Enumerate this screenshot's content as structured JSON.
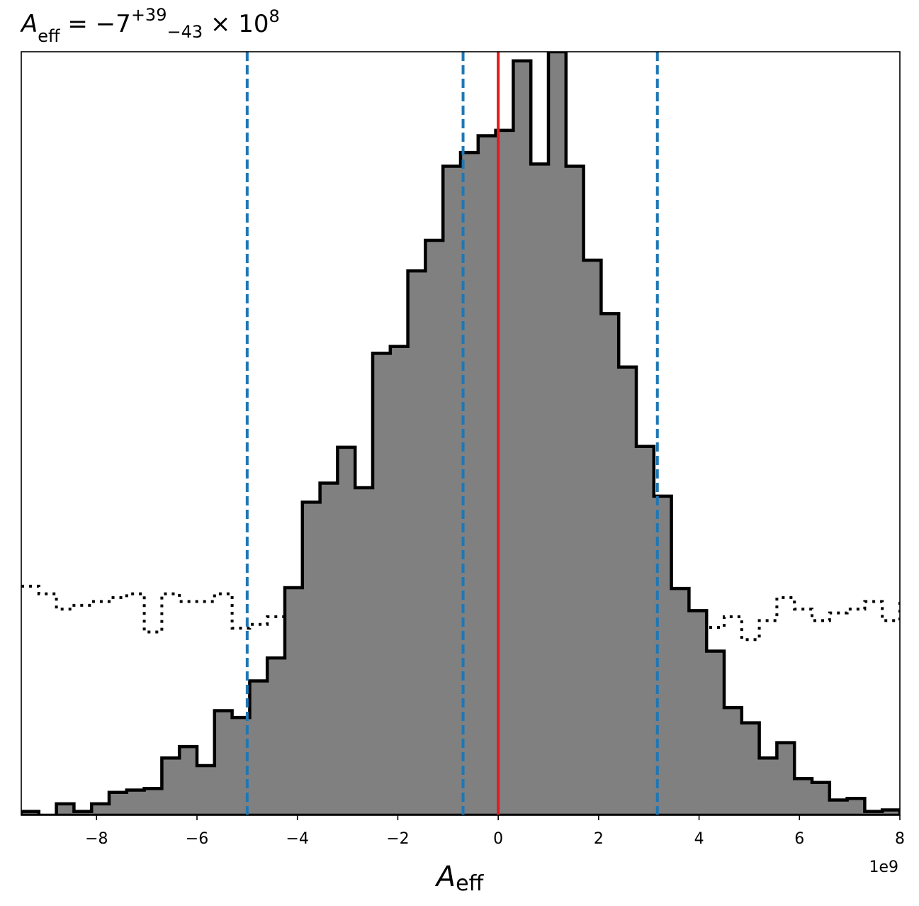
{
  "chart_data": {
    "type": "histogram",
    "title": {
      "symbol": "A",
      "symbol_sub": "eff",
      "equals": " = −7",
      "sup": "+39",
      "sub": "−43",
      "times": " × 10",
      "exponent": "8"
    },
    "xlabel": {
      "symbol": "A",
      "sub": "eff"
    },
    "x_offset_label": "1e9",
    "xlim": [
      -9.5,
      8.0
    ],
    "ylim": [
      0,
      1.0
    ],
    "x_ticks": [
      {
        "value": -8,
        "label": "−8"
      },
      {
        "value": -6,
        "label": "−6"
      },
      {
        "value": -4,
        "label": "−4"
      },
      {
        "value": -2,
        "label": "−2"
      },
      {
        "value": 0,
        "label": "0"
      },
      {
        "value": 2,
        "label": "2"
      },
      {
        "value": 4,
        "label": "4"
      },
      {
        "value": 6,
        "label": "6"
      },
      {
        "value": 8,
        "label": "8"
      }
    ],
    "bin_width": 0.35,
    "posterior_histogram": {
      "bin_start": -9.5,
      "fill_color": "#808080",
      "edge_color": "#000000",
      "values": [
        0.005,
        0,
        0.015,
        0.005,
        0.015,
        0.03,
        0.033,
        0.035,
        0.075,
        0.09,
        0.065,
        0.137,
        0.128,
        0.176,
        0.206,
        0.298,
        0.41,
        0.435,
        0.482,
        0.429,
        0.605,
        0.614,
        0.713,
        0.753,
        0.85,
        0.868,
        0.89,
        0.897,
        0.988,
        0.853,
        1.0,
        0.85,
        0.727,
        0.657,
        0.587,
        0.483,
        0.418,
        0.297,
        0.268,
        0.215,
        0.141,
        0.121,
        0.075,
        0.095,
        0.048,
        0.043,
        0.02,
        0.022,
        0.005,
        0.007,
        0.0
      ]
    },
    "prior_histogram": {
      "bin_start": -9.5,
      "line_color": "#000000",
      "line_style": "dotted",
      "values": [
        0.3,
        0.29,
        0.27,
        0.275,
        0.28,
        0.285,
        0.29,
        0.24,
        0.29,
        0.28,
        0.28,
        0.29,
        0.245,
        0.25,
        0.26,
        0.27,
        0.275,
        0.27,
        0.27,
        0.27,
        0.27,
        0.262,
        0.265,
        0.28,
        0.275,
        0.27,
        0.26,
        0.273,
        0.276,
        0.275,
        0.25,
        0.245,
        0.255,
        0.255,
        0.245,
        0.262,
        0.255,
        0.25,
        0.26,
        0.246,
        0.26,
        0.23,
        0.255,
        0.285,
        0.27,
        0.255,
        0.265,
        0.27,
        0.28,
        0.255,
        0.28
      ]
    },
    "vertical_lines": [
      {
        "name": "lower-quantile",
        "x": -5.0,
        "color": "#1f77b4",
        "style": "dashed"
      },
      {
        "name": "median",
        "x": -0.7,
        "color": "#1f77b4",
        "style": "dashed"
      },
      {
        "name": "upper-quantile",
        "x": 3.17,
        "color": "#1f77b4",
        "style": "dashed"
      },
      {
        "name": "true-value",
        "x": 0.0,
        "color": "#e41a1c",
        "style": "solid"
      }
    ]
  }
}
